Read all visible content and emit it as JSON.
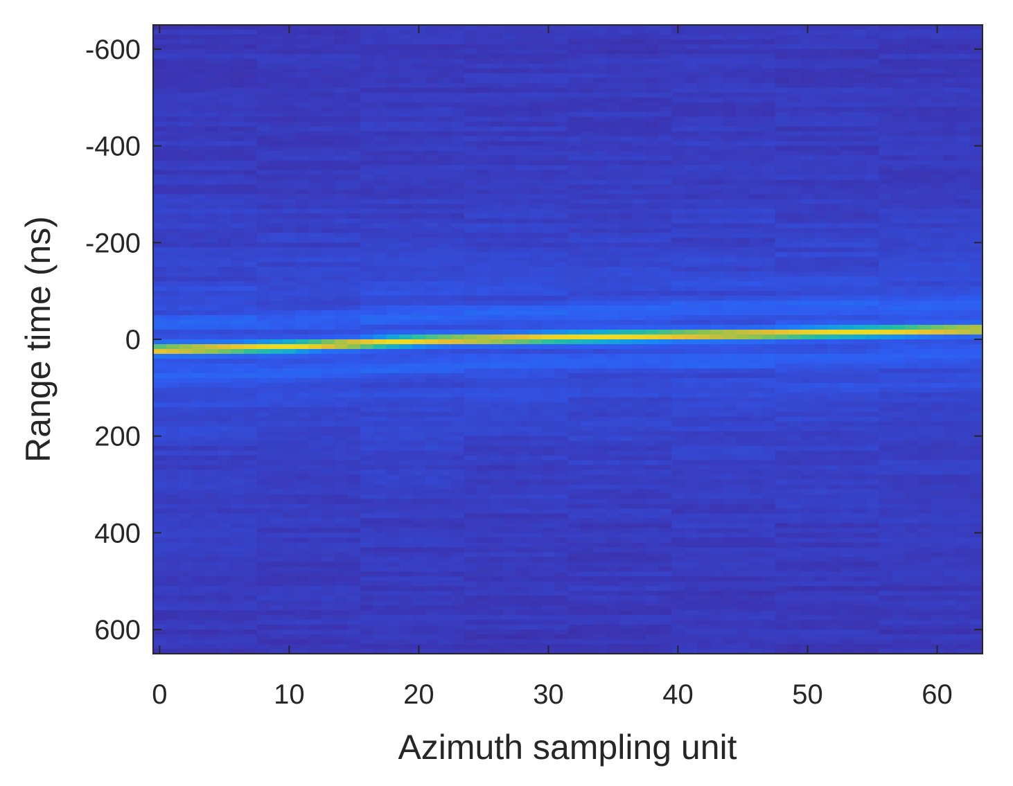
{
  "chart_data": {
    "type": "heatmap",
    "title": "",
    "xlabel": "Azimuth sampling unit",
    "ylabel": "Range time (ns)",
    "xlim": [
      -0.5,
      63.5
    ],
    "ylim": [
      -650,
      650
    ],
    "y_reversed": true,
    "x_ticks": [
      0,
      10,
      20,
      30,
      40,
      50,
      60
    ],
    "x_tick_labels": [
      "0",
      "10",
      "20",
      "30",
      "40",
      "50",
      "60"
    ],
    "y_ticks": [
      -600,
      -400,
      -200,
      0,
      200,
      400,
      600
    ],
    "y_tick_labels": [
      "-600",
      "-400",
      "-200",
      "0",
      "200",
      "400",
      "600"
    ],
    "grid": false,
    "colormap": "parula",
    "colors": {
      "background": "#3d2ea8",
      "peak": "#f9c93a",
      "axis": "#262626"
    },
    "azimuth_bins": 64,
    "range_bins": 130,
    "range_step_ns": 10,
    "target_trace": {
      "x": [
        0,
        10,
        20,
        30,
        40,
        50,
        63
      ],
      "range_time_ns": [
        22,
        15,
        3,
        -3,
        -8,
        -13,
        -20
      ],
      "peak_intensity": 0.93
    }
  }
}
